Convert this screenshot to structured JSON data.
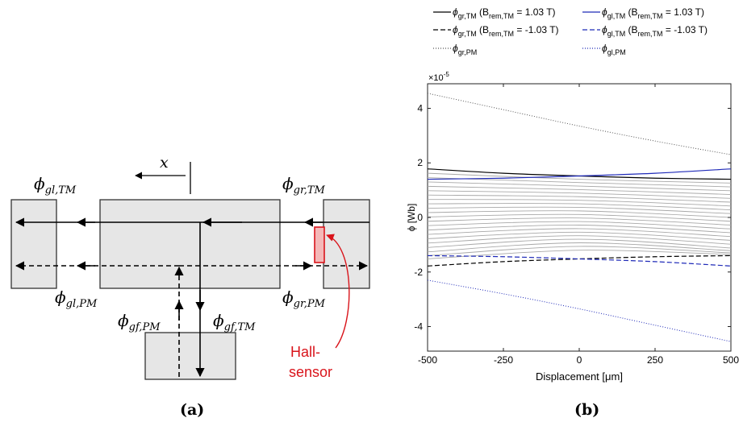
{
  "panel_a": {
    "label": "(a)",
    "x_label": "x",
    "flux_labels": {
      "gl_tm": {
        "sym": "ϕ",
        "sub": "gl,TM"
      },
      "gr_tm": {
        "sym": "ϕ",
        "sub": "gr,TM"
      },
      "gl_pm": {
        "sym": "ϕ",
        "sub": "gl,PM"
      },
      "gr_pm": {
        "sym": "ϕ",
        "sub": "gr,PM"
      },
      "gf_pm": {
        "sym": "ϕ",
        "sub": "gf,PM"
      },
      "gf_tm": {
        "sym": "ϕ",
        "sub": "gf,TM"
      }
    },
    "hall_line1": "Hall-",
    "hall_line2": "sensor",
    "hall_color": "#d9141b",
    "block_fill": "#e6e6e6"
  },
  "panel_b": {
    "label": "(b)",
    "exponent": "×10",
    "exponent_power": "-5"
  },
  "chart_data": {
    "type": "line",
    "xlabel": "Displacement [μm]",
    "ylabel": "ϕ [Wb]",
    "xlim": [
      -500,
      500
    ],
    "ylim": [
      -4.9,
      4.9
    ],
    "xticks": [
      -500,
      -250,
      0,
      250,
      500
    ],
    "xtick_labels": [
      "-500",
      "-250",
      "0",
      "250",
      "500"
    ],
    "yticks": [
      -4,
      -2,
      0,
      2,
      4
    ],
    "ytick_labels": [
      "-4",
      "-2",
      "0",
      "2",
      "4"
    ],
    "grid": false,
    "legend_placement": "top",
    "x": [
      -500,
      -250,
      0,
      250,
      500
    ],
    "series": [
      {
        "name": "ϕgr,TM (Brem,TM = 1.03 T)",
        "legend": {
          "sym": "ϕ",
          "sub": "gr,TM",
          "pre": " (B",
          "sub2": "rem,TM",
          "post": " = 1.03 T)"
        },
        "color": "#000000",
        "dash": "solid",
        "values": [
          1.78,
          1.62,
          1.52,
          1.44,
          1.4
        ]
      },
      {
        "name": "ϕgl,TM (Brem,TM = 1.03 T)",
        "legend": {
          "sym": "ϕ",
          "sub": "gl,TM",
          "pre": " (B",
          "sub2": "rem,TM",
          "post": " = 1.03 T)"
        },
        "color": "#1f2ab8",
        "dash": "solid",
        "values": [
          1.4,
          1.44,
          1.52,
          1.62,
          1.78
        ]
      },
      {
        "name": "ϕgr,TM (Brem,TM = -1.03 T)",
        "legend": {
          "sym": "ϕ",
          "sub": "gr,TM",
          "pre": " (B",
          "sub2": "rem,TM",
          "post": " = -1.03 T)"
        },
        "color": "#000000",
        "dash": "dashed",
        "values": [
          -1.78,
          -1.62,
          -1.52,
          -1.44,
          -1.4
        ]
      },
      {
        "name": "ϕgl,TM (Brem,TM = -1.03 T)",
        "legend": {
          "sym": "ϕ",
          "sub": "gl,TM",
          "pre": " (B",
          "sub2": "rem,TM",
          "post": " = -1.03 T)"
        },
        "color": "#1f2ab8",
        "dash": "dashed",
        "values": [
          -1.4,
          -1.44,
          -1.52,
          -1.62,
          -1.78
        ]
      },
      {
        "name": "ϕgr,PM",
        "legend": {
          "sym": "ϕ",
          "sub": "gr,PM",
          "pre": "",
          "sub2": "",
          "post": ""
        },
        "color": "#555555",
        "dash": "dotted",
        "values": [
          4.55,
          3.95,
          3.35,
          2.8,
          2.3
        ]
      },
      {
        "name": "ϕgl,PM",
        "legend": {
          "sym": "ϕ",
          "sub": "gl,PM",
          "pre": "",
          "sub2": "",
          "post": ""
        },
        "color": "#1f2ab8",
        "dash": "dotted",
        "values": [
          -2.3,
          -2.8,
          -3.35,
          -3.95,
          -4.55
        ]
      }
    ],
    "intermediate_curves": {
      "color": "#a8a8a8",
      "count": 21,
      "note_values_at_x": [
        -500,
        0,
        500
      ],
      "values": [
        [
          1.62,
          1.4,
          1.26
        ],
        [
          1.46,
          1.28,
          1.12
        ],
        [
          1.3,
          1.15,
          0.98
        ],
        [
          1.14,
          1.02,
          0.84
        ],
        [
          0.98,
          0.89,
          0.7
        ],
        [
          0.82,
          0.76,
          0.56
        ],
        [
          0.66,
          0.63,
          0.42
        ],
        [
          0.5,
          0.5,
          0.28
        ],
        [
          0.34,
          0.37,
          0.14
        ],
        [
          0.18,
          0.24,
          0.0
        ],
        [
          0.02,
          0.11,
          -0.14
        ],
        [
          -0.14,
          -0.02,
          -0.28
        ],
        [
          -0.3,
          -0.15,
          -0.42
        ],
        [
          -0.46,
          -0.28,
          -0.56
        ],
        [
          -0.62,
          -0.41,
          -0.7
        ],
        [
          -0.78,
          -0.54,
          -0.84
        ],
        [
          -0.94,
          -0.67,
          -0.98
        ],
        [
          -1.1,
          -0.8,
          -1.12
        ],
        [
          -1.26,
          -0.93,
          -1.22
        ],
        [
          -1.4,
          -1.06,
          -1.3
        ],
        [
          -1.52,
          -1.2,
          -1.36
        ]
      ]
    }
  }
}
